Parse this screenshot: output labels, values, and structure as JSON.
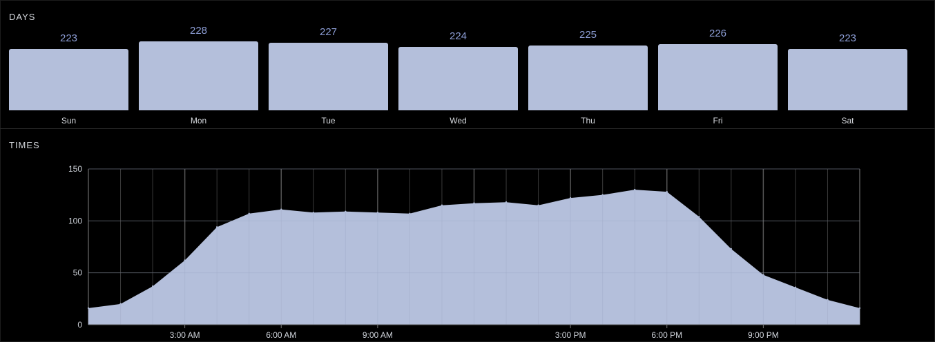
{
  "days_section": {
    "label": "DAYS"
  },
  "times_section": {
    "label": "TIMES"
  },
  "colors": {
    "bar": "#b4bfdb",
    "value_label": "#8d9ed6",
    "area": "#b4bfdb",
    "background": "#000000",
    "gridline": "#3a3a3a"
  },
  "chart_data": [
    {
      "type": "bar",
      "title": "DAYS",
      "categories": [
        "Sun",
        "Mon",
        "Tue",
        "Wed",
        "Thu",
        "Fri",
        "Sat"
      ],
      "values": [
        223,
        228,
        227,
        224,
        225,
        226,
        223
      ],
      "data_labels": [
        "223",
        "228",
        "227",
        "224",
        "225",
        "226",
        "223"
      ]
    },
    {
      "type": "area",
      "title": "TIMES",
      "x": [
        0,
        1,
        2,
        3,
        4,
        5,
        6,
        7,
        8,
        9,
        10,
        11,
        12,
        13,
        14,
        15,
        16,
        17,
        18,
        19,
        20,
        21,
        22,
        23,
        24
      ],
      "values": [
        16,
        20,
        37,
        62,
        94,
        107,
        111,
        108,
        109,
        108,
        107,
        115,
        117,
        118,
        115,
        122,
        125,
        130,
        128,
        104,
        73,
        48,
        36,
        24,
        16
      ],
      "x_tick_positions": [
        3,
        6,
        9,
        15,
        18,
        21
      ],
      "x_tick_labels": [
        "3:00 AM",
        "6:00 AM",
        "9:00 AM",
        "3:00 PM",
        "6:00 PM",
        "9:00 PM"
      ],
      "y_ticks": [
        0,
        50,
        100,
        150
      ],
      "y_tick_labels": [
        "0",
        "50",
        "100",
        "150"
      ],
      "ylim": [
        0,
        150
      ],
      "xlim": [
        0,
        24
      ],
      "grid": true
    }
  ]
}
